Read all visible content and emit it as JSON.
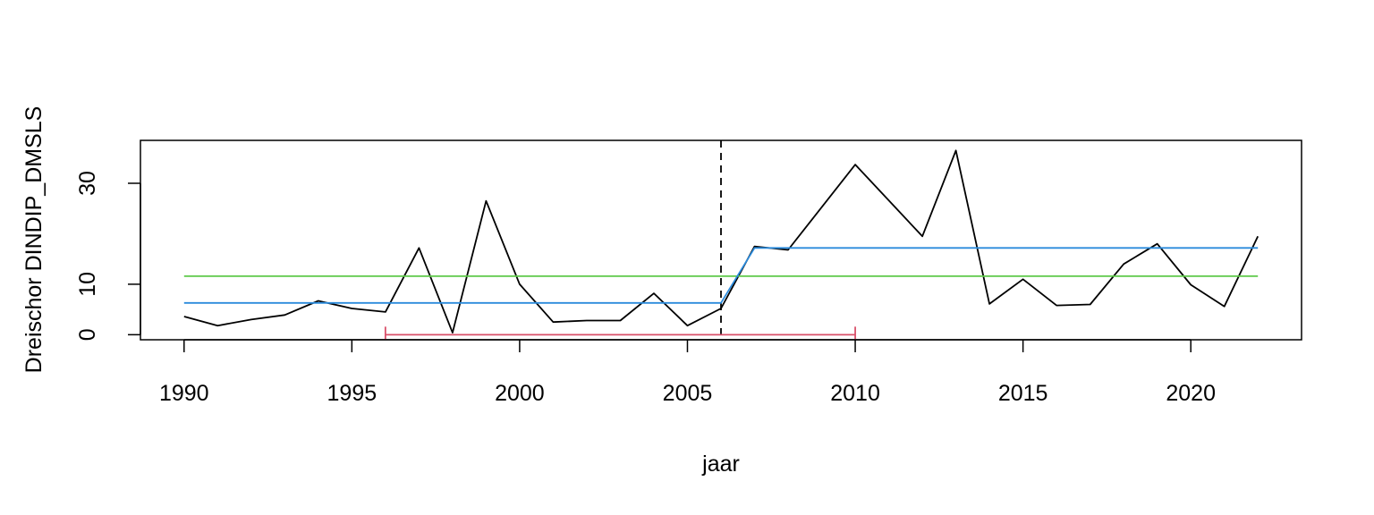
{
  "chart_data": {
    "type": "line",
    "title": "",
    "xlabel": "jaar",
    "ylabel": "Dreischor DINDIP_DMSLS",
    "xlim": [
      1988.7,
      2023.3
    ],
    "ylim": [
      -1,
      38.5
    ],
    "x_ticks": [
      1990,
      1995,
      2000,
      2005,
      2010,
      2015,
      2020
    ],
    "y_ticks": [
      0,
      10,
      30
    ],
    "series": [
      {
        "style": "line",
        "color": "#000000",
        "x": [
          1990,
          1991,
          1992,
          1993,
          1994,
          1995,
          1996,
          1997,
          1998,
          1999,
          2000,
          2001,
          2002,
          2003,
          2004,
          2005,
          2006,
          2007,
          2008,
          2010,
          2012,
          2013,
          2014,
          2015,
          2016,
          2017,
          2018,
          2019,
          2020,
          2021,
          2022
        ],
        "y": [
          3.6,
          1.8,
          3.0,
          3.9,
          6.7,
          5.2,
          4.5,
          17.2,
          0.4,
          26.5,
          10.0,
          2.5,
          2.8,
          2.8,
          8.2,
          1.8,
          5.2,
          17.5,
          16.8,
          33.7,
          19.5,
          36.5,
          6.1,
          11.0,
          5.8,
          6.0,
          14.0,
          18.0,
          9.9,
          5.6,
          19.5
        ]
      },
      {
        "style": "line",
        "color": "#5ec94a",
        "x": [
          1990,
          2022
        ],
        "y": [
          11.6,
          11.6
        ]
      },
      {
        "style": "line",
        "color": "#2b8bdc",
        "x": [
          1990,
          2006,
          2007,
          2022
        ],
        "y": [
          6.3,
          6.3,
          17.2,
          17.2
        ]
      }
    ],
    "annotations": [
      {
        "type": "vline",
        "x": 2006,
        "style": "dashed",
        "color": "#000000"
      },
      {
        "type": "interval",
        "x_start": 1996,
        "x_end": 2010,
        "y": 0,
        "color": "#d9506a"
      }
    ]
  }
}
